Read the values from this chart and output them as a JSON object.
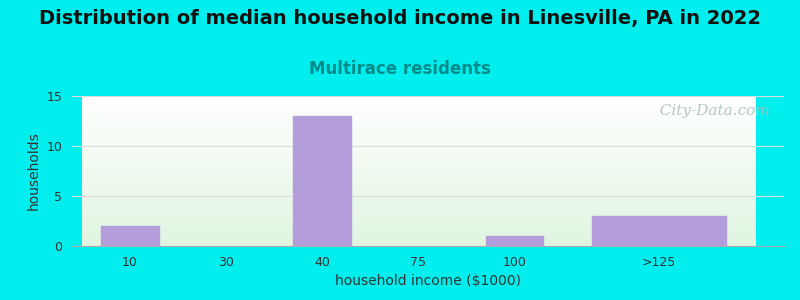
{
  "title": "Distribution of median household income in Linesville, PA in 2022",
  "subtitle": "Multirace residents",
  "subtitle_color": "#008b8b",
  "xlabel": "household income ($1000)",
  "ylabel": "households",
  "categories": [
    "10",
    "30",
    "40",
    "75",
    "100",
    ">125"
  ],
  "bar_lefts": [
    0.0,
    1.0,
    2.0,
    3.0,
    4.0,
    5.0
  ],
  "bar_widths": [
    0.8,
    0.8,
    0.8,
    0.8,
    0.8,
    0.8
  ],
  "values": [
    2,
    0,
    13,
    0,
    1,
    3
  ],
  "bar_color": "#b39ddb",
  "ylim": [
    0,
    15
  ],
  "yticks": [
    0,
    5,
    10,
    15
  ],
  "xlim": [
    -0.5,
    6.5
  ],
  "background_color": "#00eeee",
  "grid_color": "#dddddd",
  "title_fontsize": 14,
  "subtitle_fontsize": 12,
  "axis_label_fontsize": 10,
  "tick_fontsize": 9,
  "watermark_text": "  City-Data.com",
  "watermark_color": "#a8bfbf",
  "watermark_fontsize": 11
}
